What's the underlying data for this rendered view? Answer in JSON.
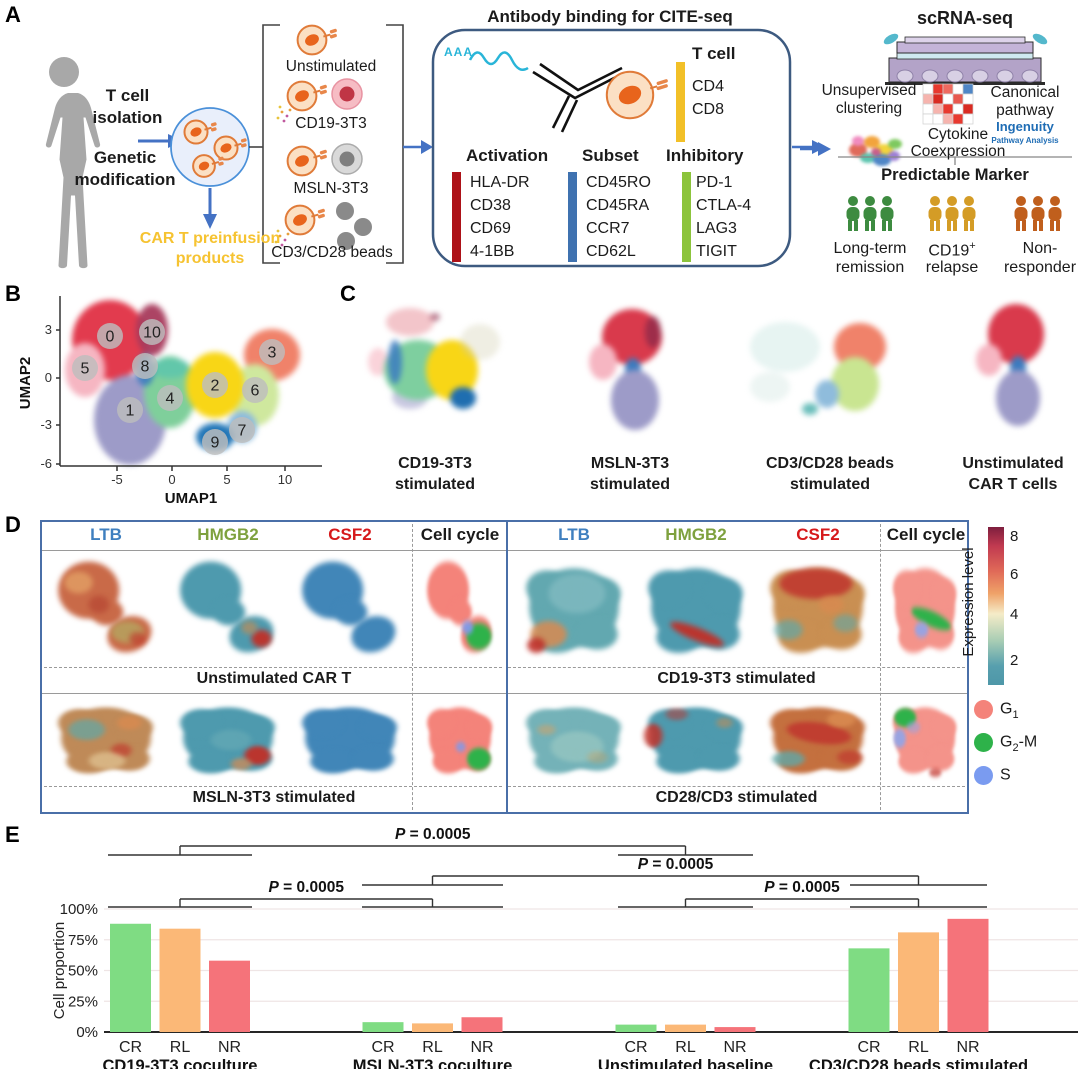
{
  "figure": {
    "background": "#ffffff"
  },
  "panel_a": {
    "label": "A",
    "step1_line1": "T cell",
    "step1_line2": "isolation",
    "step2_line1": "Genetic",
    "step2_line2": "modification",
    "preinfusion_line1": "CAR T preinfusion",
    "preinfusion_line2": "products",
    "preinfusion_color": "#F6C331",
    "arrow_color": "#4472C4",
    "conditions": [
      "Unstimulated",
      "CD19-3T3",
      "MSLN-3T3",
      "CD3/CD28 beads"
    ],
    "citeseq": {
      "title": "Antibody binding for CITE-seq",
      "rna_label": "AAA",
      "panels": [
        {
          "title": "T cell",
          "bar_color": "#F2C028",
          "items": [
            "CD4",
            "CD8"
          ]
        },
        {
          "title": "Activation",
          "bar_color": "#AD1218",
          "items": [
            "HLA-DR",
            "CD38",
            "CD69",
            "4-1BB"
          ]
        },
        {
          "title": "Subset",
          "bar_color": "#3F72B0",
          "items": [
            "CD45RO",
            "CD45RA",
            "CCR7",
            "CD62L"
          ]
        },
        {
          "title": "Inhibitory",
          "bar_color": "#8CC43C",
          "items": [
            "PD-1",
            "CTLA-4",
            "LAG3",
            "TIGIT"
          ]
        }
      ]
    },
    "scrna": {
      "title": "scRNA-seq",
      "clustering_line1": "Unsupervised",
      "clustering_line2": "clustering",
      "pathway_line1": "Canonical",
      "pathway_line2": "pathway",
      "ingenuity_line1": "Ingenuity",
      "ingenuity_line2": "Pathway Analysis",
      "ingenuity_color": "#1F6DB5",
      "cytokine_line1": "Cytokine",
      "cytokine_line2": "Coexpression",
      "predictable_title": "Predictable Marker",
      "outcomes": [
        {
          "line1": "Long-term",
          "sup": "",
          "line2": "remission",
          "color": "#3D8B40"
        },
        {
          "line1": "CD19",
          "sup": "+",
          "line2": "relapse",
          "color": "#D49C26"
        },
        {
          "line1": "Non-",
          "sup": "",
          "line2": "responder",
          "color": "#C05F1D"
        }
      ]
    }
  },
  "panel_b": {
    "label": "B",
    "xlabel": "UMAP1",
    "ylabel": "UMAP2",
    "xticks": [
      "-5",
      "0",
      "5",
      "10"
    ],
    "yticks": [
      "3",
      "0",
      "-3",
      "-6"
    ],
    "cluster_ids": [
      "0",
      "1",
      "2",
      "3",
      "4",
      "5",
      "6",
      "7",
      "8",
      "9",
      "10"
    ]
  },
  "panel_c": {
    "label": "C",
    "plots": [
      {
        "line1": "CD19-3T3",
        "line2": "stimulated"
      },
      {
        "line1": "MSLN-3T3",
        "line2": "stimulated"
      },
      {
        "line1": "CD3/CD28 beads",
        "line2": "stimulated"
      },
      {
        "line1": "Unstimulated",
        "line2": "CAR T cells"
      }
    ]
  },
  "panel_d": {
    "label": "D",
    "gene_headers": [
      {
        "text": "LTB",
        "color": "#3F7FBF"
      },
      {
        "text": "HMGB2",
        "color": "#7EA13E"
      },
      {
        "text": "CSF2",
        "color": "#D6191B"
      },
      {
        "text": "Cell cycle",
        "color": "#1A1A1A"
      }
    ],
    "row_labels": [
      "Unstimulated CAR T",
      "CD19-3T3 stimulated",
      "MSLN-3T3 stimulated",
      "CD28/CD3 stimulated"
    ],
    "colorbar": {
      "label": "Expression level",
      "ticks": [
        "8",
        "6",
        "4",
        "2"
      ]
    },
    "legend": [
      {
        "pre": "G",
        "sub": "1",
        "post": "",
        "color": "#F4837A"
      },
      {
        "pre": "G",
        "sub": "2",
        "post": "-M",
        "color": "#2EB24A"
      },
      {
        "pre": "S",
        "sub": "",
        "post": "",
        "color": "#7A9BF0"
      }
    ]
  },
  "chart_data": {
    "type": "bar",
    "title": "",
    "xlabel": "",
    "ylabel": "Cell proportion",
    "ylim": [
      0,
      100
    ],
    "yticks": [
      "0%",
      "25%",
      "50%",
      "75%",
      "100%"
    ],
    "grid": true,
    "legend_position": "none",
    "categories": [
      "CD19-3T3 coculture",
      "MSLN-3T3 coculture",
      "Unstimulated baseline",
      "CD3/CD28 beads stimulated"
    ],
    "series": [
      {
        "name": "CR",
        "color": "#7FDC83",
        "values": [
          88,
          8,
          6,
          68
        ]
      },
      {
        "name": "RL",
        "color": "#FBB877",
        "values": [
          84,
          7,
          6,
          81
        ]
      },
      {
        "name": "NR",
        "color": "#F5737A",
        "values": [
          58,
          12,
          4,
          92
        ]
      }
    ],
    "significance": [
      {
        "label": "P = 0.0005",
        "pair": [
          0,
          2
        ],
        "level": 3
      },
      {
        "label": "P = 0.0005",
        "pair": [
          1,
          3
        ],
        "level": 2
      },
      {
        "label": "P = 0.0005",
        "pair": [
          0,
          1
        ],
        "level": 1
      },
      {
        "label": "P = 0.0005",
        "pair": [
          2,
          3
        ],
        "level": 1
      }
    ]
  }
}
